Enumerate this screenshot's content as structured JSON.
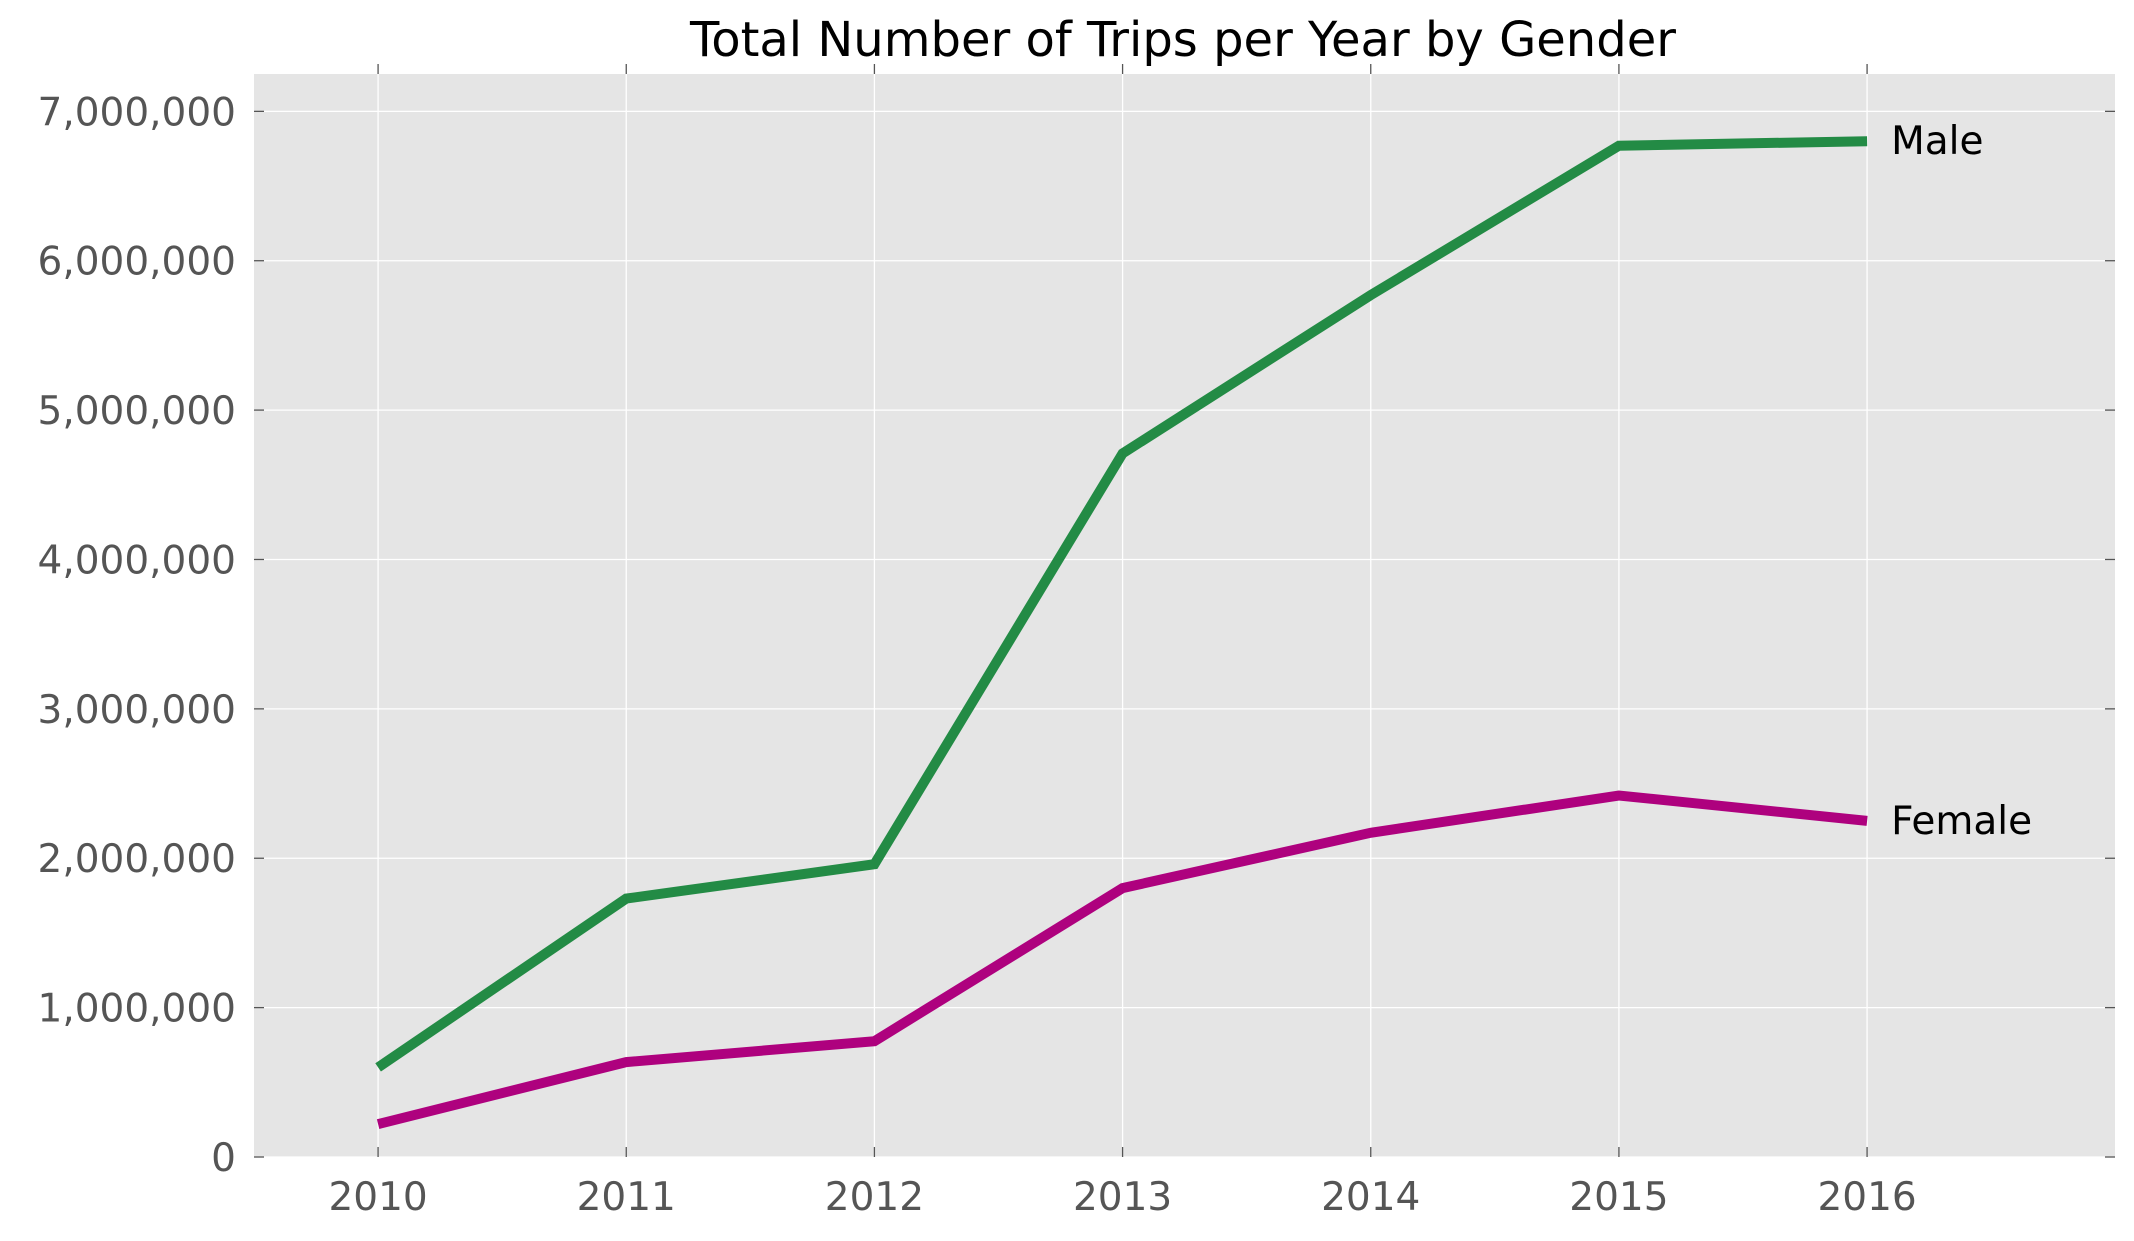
{
  "chart_data": {
    "type": "line",
    "title": "Total Number of Trips per Year by Gender",
    "xlabel": "",
    "ylabel": "",
    "x": [
      2010,
      2011,
      2012,
      2013,
      2014,
      2015,
      2016
    ],
    "x_tick_labels": [
      "2010",
      "2011",
      "2012",
      "2013",
      "2014",
      "2015",
      "2016"
    ],
    "xlim": [
      2009.5,
      2016.999
    ],
    "ylim": [
      0,
      7250000
    ],
    "y_ticks": [
      0,
      1000000,
      2000000,
      3000000,
      4000000,
      5000000,
      6000000,
      7000000
    ],
    "y_tick_labels": [
      "0",
      "1,000,000",
      "2,000,000",
      "3,000,000",
      "4,000,000",
      "5,000,000",
      "6,000,000",
      "7,000,000"
    ],
    "grid": true,
    "legend": "none",
    "series": [
      {
        "name": "Male",
        "color": "#238b45",
        "values": [
          600000,
          1730000,
          1960000,
          4710000,
          5770000,
          6770000,
          6800000
        ]
      },
      {
        "name": "Female",
        "color": "#ae017e",
        "values": [
          220000,
          635000,
          775000,
          1800000,
          2170000,
          2420000,
          2250000
        ]
      }
    ],
    "colors": {
      "plot_background": "#e5e5e5",
      "grid": "#ffffff",
      "tick_label": "#555555"
    }
  }
}
